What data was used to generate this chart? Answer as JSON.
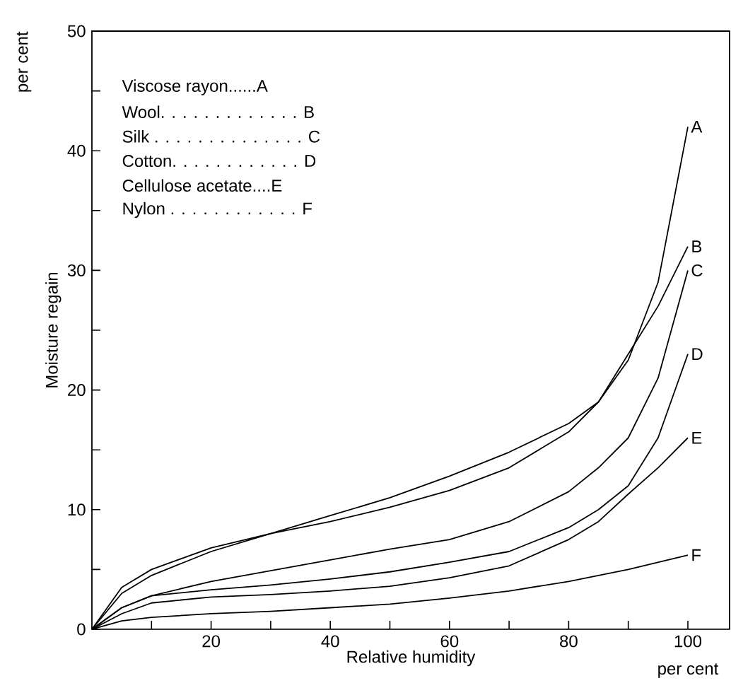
{
  "chart_data": {
    "type": "line",
    "xlabel": "Relative humidity",
    "ylabel": "Moisture regain",
    "xlim": [
      0,
      107
    ],
    "ylim": [
      0,
      50
    ],
    "xticks": [
      {
        "value": 10,
        "label": null
      },
      20,
      {
        "value": 30,
        "label": null
      },
      40,
      {
        "value": 50,
        "label": null
      },
      60,
      {
        "value": 70,
        "label": null
      },
      80,
      {
        "value": 90,
        "label": null
      },
      100
    ],
    "yticks": [
      0,
      {
        "value": 5,
        "label": null
      },
      10,
      {
        "value": 15,
        "label": null
      },
      20,
      {
        "value": 25,
        "label": null
      },
      30,
      {
        "value": 35,
        "label": null
      },
      40,
      {
        "value": 45,
        "label": null
      },
      50
    ],
    "x": [
      0,
      5,
      10,
      20,
      30,
      40,
      50,
      60,
      70,
      80,
      85,
      90,
      95,
      100
    ],
    "series": [
      {
        "name": "A",
        "color": "#000000",
        "values": [
          0,
          3.5,
          5,
          6.8,
          8,
          9.5,
          11,
          12.8,
          14.8,
          17.2,
          19,
          22.5,
          29,
          42
        ]
      },
      {
        "name": "B",
        "color": "#000000",
        "values": [
          0,
          3,
          4.5,
          6.5,
          8,
          9,
          10.2,
          11.6,
          13.5,
          16.5,
          19,
          23,
          27,
          32
        ]
      },
      {
        "name": "C",
        "color": "#000000",
        "values": [
          0,
          1.8,
          2.8,
          4,
          4.9,
          5.8,
          6.7,
          7.5,
          9,
          11.5,
          13.5,
          16,
          21,
          30
        ]
      },
      {
        "name": "D",
        "color": "#000000",
        "values": [
          0,
          1.8,
          2.8,
          3.3,
          3.7,
          4.2,
          4.8,
          5.6,
          6.5,
          8.5,
          10,
          12,
          16,
          23
        ]
      },
      {
        "name": "E",
        "color": "#000000",
        "values": [
          0,
          1.3,
          2.2,
          2.7,
          2.9,
          3.2,
          3.6,
          4.3,
          5.3,
          7.5,
          9,
          11.3,
          13.5,
          16
        ]
      },
      {
        "name": "F",
        "color": "#000000",
        "values": [
          0,
          0.7,
          1,
          1.3,
          1.5,
          1.8,
          2.1,
          2.6,
          3.2,
          4,
          4.5,
          5,
          5.6,
          6.2
        ]
      }
    ],
    "annotations": [
      "Viscose rayon......A",
      "Wool. . . . . . . . . . . . . B",
      "Silk . . . . . . . . . . . . . . C",
      "Cotton. . . . . . . . . . . . D",
      "Cellulose acetate....E",
      "Nylon . . . . . . . . . . . . F",
      "per cent",
      "per cent"
    ]
  }
}
